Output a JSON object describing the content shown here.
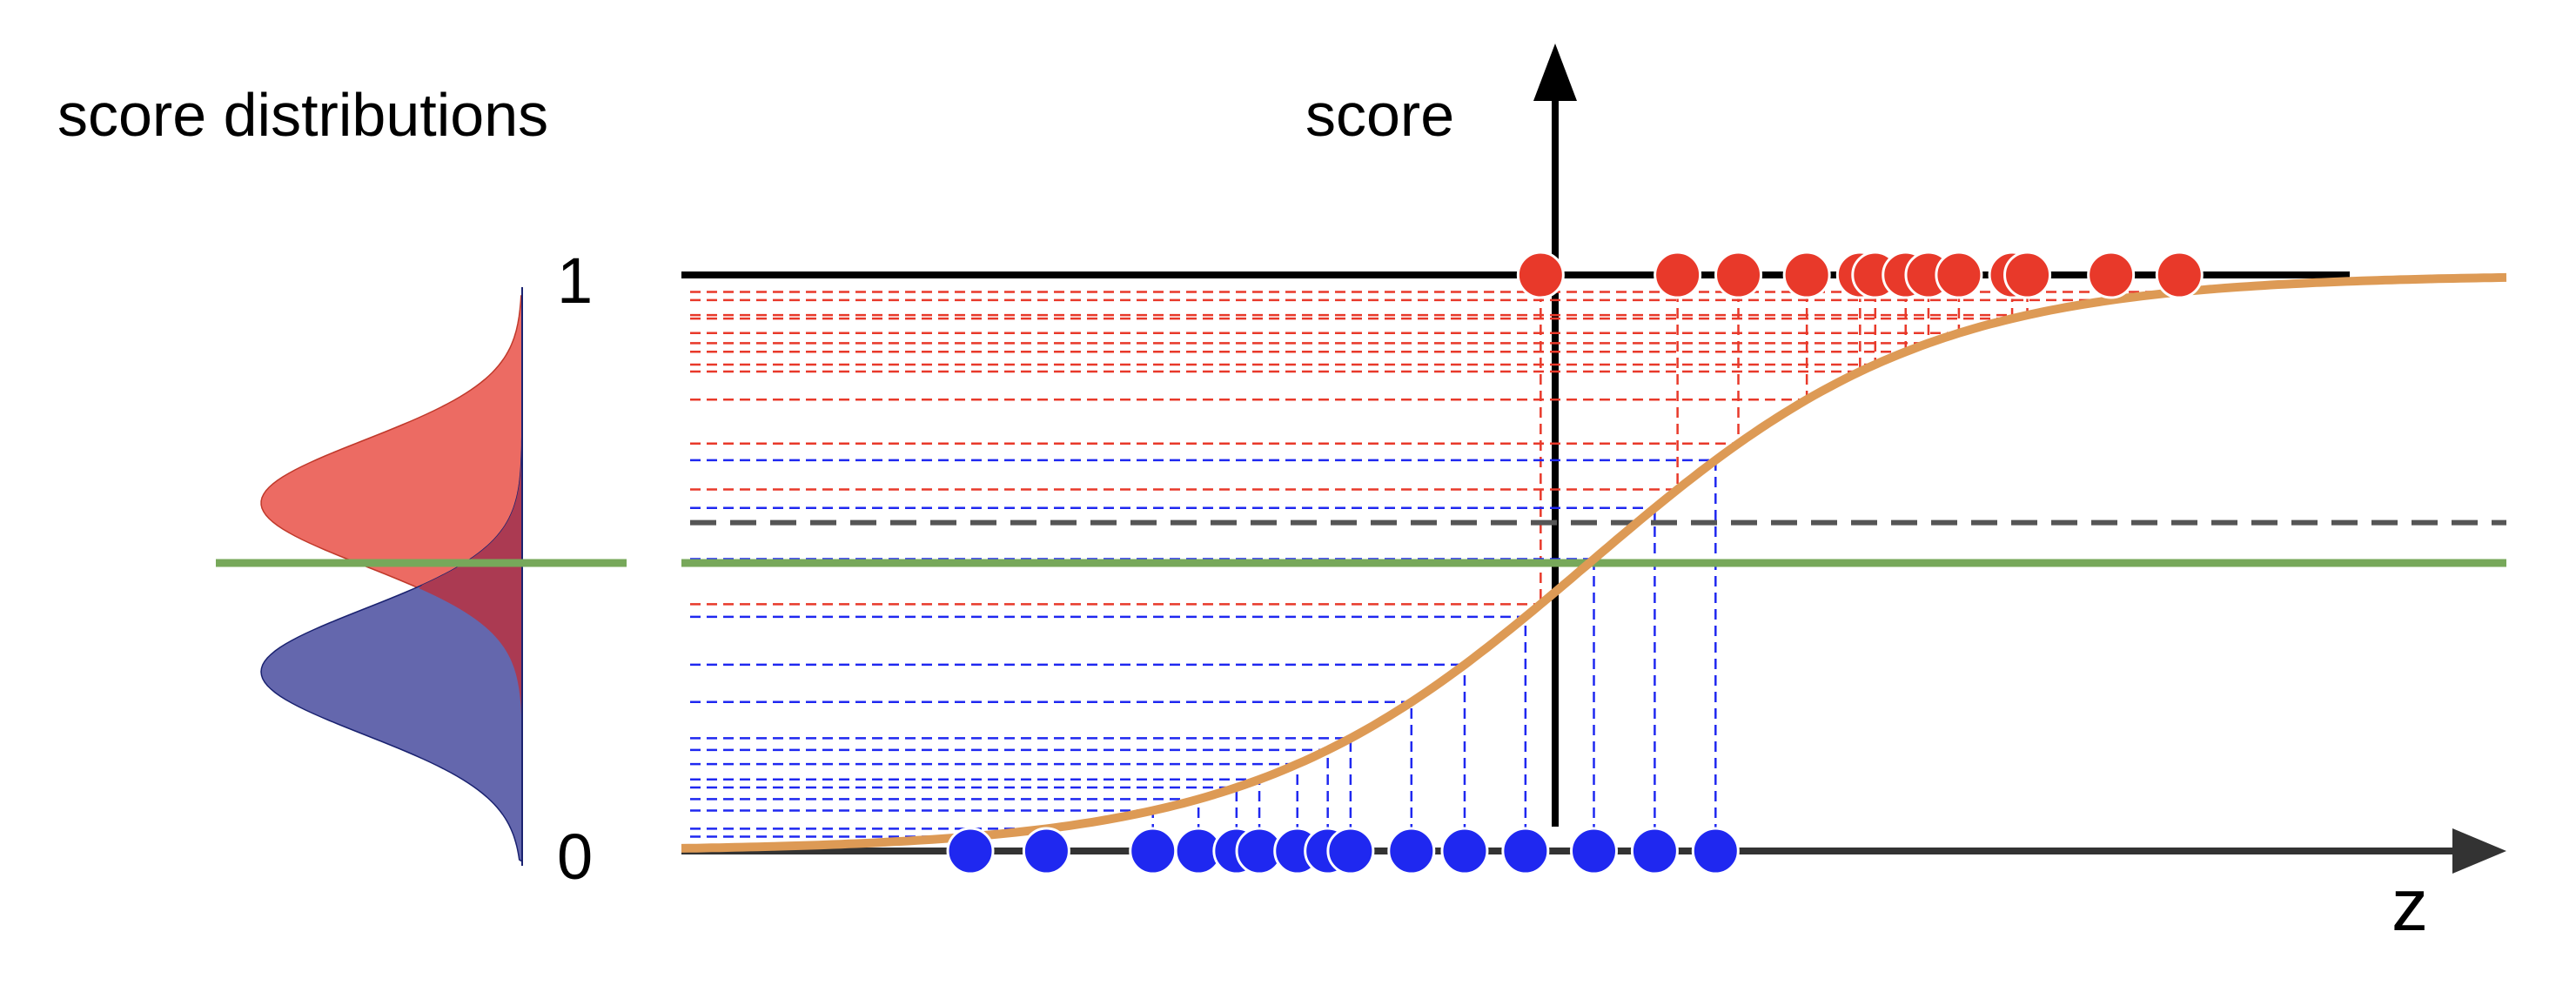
{
  "title": "score distributions",
  "axis_y_label": "score",
  "axis_x_label": "z",
  "tick_top": "1",
  "tick_bottom": "0",
  "colors": {
    "positive": "#e8392a",
    "negative": "#1f28f0",
    "curve": "#dd9a55",
    "threshold": "#77a85a",
    "dashed_threshold": "#555555",
    "dist_positive": "#ec6b63",
    "dist_negative": "#6467ad",
    "dist_overlap": "#ab3a52"
  },
  "sigmoid": {
    "center_z": -0.03,
    "slope": 0.9
  },
  "z_range": [
    -6,
    6
  ],
  "positive_points_z": [
    -0.35,
    0.55,
    0.95,
    1.4,
    1.75,
    1.85,
    2.05,
    2.2,
    2.4,
    2.75,
    2.85,
    3.4,
    3.85
  ],
  "negative_points_z": [
    -4.1,
    -3.6,
    -2.9,
    -2.6,
    -2.35,
    -2.2,
    -1.95,
    -1.75,
    -1.6,
    -1.2,
    -0.85,
    -0.45,
    0.0,
    0.4,
    0.8
  ],
  "score_threshold": 0.57,
  "decision_threshold": 0.5
}
